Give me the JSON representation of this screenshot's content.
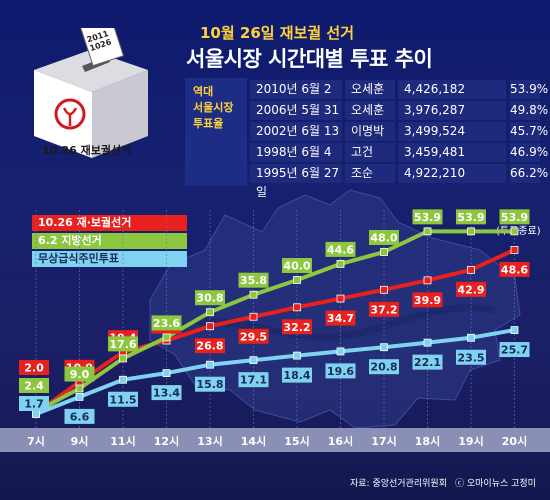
{
  "header": {
    "title": "10월 26일 재보궐 선거",
    "subtitle": "서울시장 시간대별 투표 추이"
  },
  "ballot_box": {
    "slip_text_1": "2011",
    "slip_text_2": "1026",
    "label": "10.26 재보궐선거"
  },
  "history": {
    "heading": [
      "역대",
      "서울시장",
      "투표율"
    ],
    "rows": [
      {
        "date": "2010년 6월 2일",
        "name": "오세훈",
        "votes": "4,426,182",
        "rate": "53.9%"
      },
      {
        "date": "2006년 5월 31일",
        "name": "오세훈",
        "votes": "3,976,287",
        "rate": "49.8%"
      },
      {
        "date": "2002년 6월 13일",
        "name": "이명박",
        "votes": "3,499,524",
        "rate": "45.7%"
      },
      {
        "date": "1998년 6월 4일",
        "name": "고건",
        "votes": "3,459,481",
        "rate": "46.9%"
      },
      {
        "date": "1995년 6월 27일",
        "name": "조순",
        "votes": "4,922,210",
        "rate": "66.2%"
      }
    ]
  },
  "closing_note": "(투표종료)",
  "source": "자료: 중앙선거관리위원회",
  "credit": "ⓒ 오마이뉴스 고정미",
  "chart_data": {
    "type": "line",
    "categories": [
      "7시",
      "9시",
      "11시",
      "12시",
      "13시",
      "14시",
      "15시",
      "16시",
      "17시",
      "18시",
      "19시",
      "20시"
    ],
    "series": [
      {
        "name": "10.26 재·보궐선거",
        "color": "#e8201e",
        "values": [
          2.0,
          10.9,
          19.4,
          22.7,
          26.8,
          29.5,
          32.2,
          34.7,
          37.2,
          39.9,
          42.9,
          48.6
        ]
      },
      {
        "name": "6.2 지방선거",
        "color": "#8dc63f",
        "values": [
          2.4,
          9.0,
          17.6,
          23.6,
          30.8,
          35.8,
          40.0,
          44.6,
          48.0,
          53.9,
          53.9,
          53.9
        ]
      },
      {
        "name": "무상급식주민투표",
        "color": "#7fd3f0",
        "values": [
          1.7,
          6.6,
          11.5,
          13.4,
          15.8,
          17.1,
          18.4,
          19.6,
          20.8,
          22.1,
          23.5,
          25.7
        ]
      }
    ],
    "ylim": [
      0,
      60
    ]
  }
}
